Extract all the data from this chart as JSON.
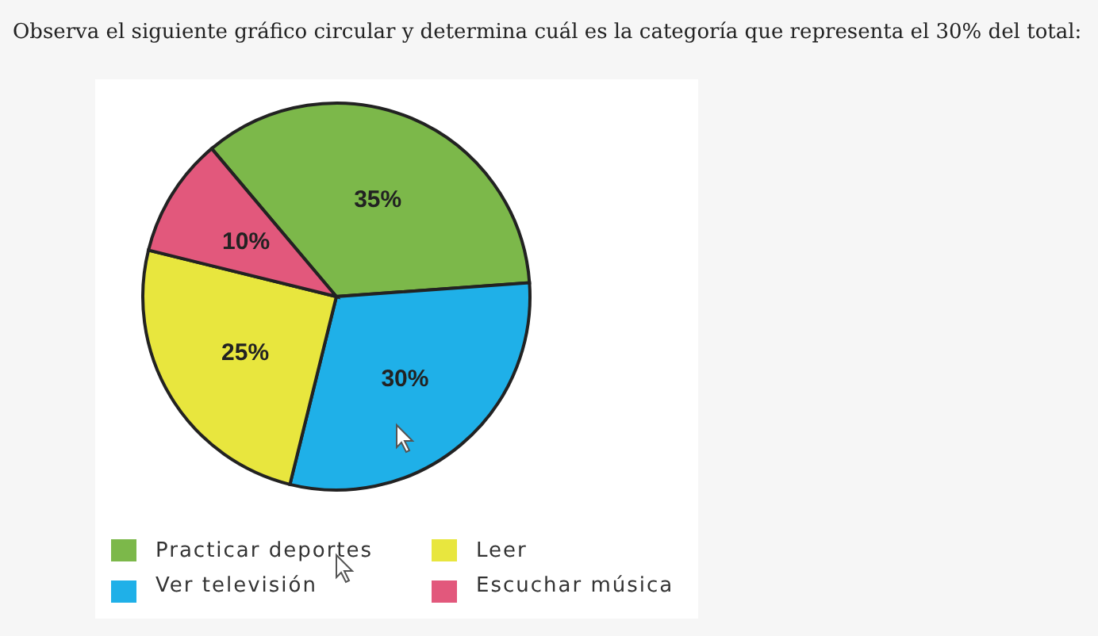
{
  "chart_data": {
    "type": "pie",
    "title": "Observa el siguiente gráfico circular y determina cuál es la categoría que representa el 30% del total:",
    "categories": [
      "Practicar deportes",
      "Ver televisión",
      "Leer",
      "Escuchar música"
    ],
    "values": [
      35,
      30,
      25,
      10
    ],
    "value_labels": [
      "35%",
      "30%",
      "25%",
      "10%"
    ],
    "colors": [
      "#7cb84a",
      "#1fb0e8",
      "#e8e63e",
      "#e2587c"
    ],
    "legend": "bottom"
  }
}
